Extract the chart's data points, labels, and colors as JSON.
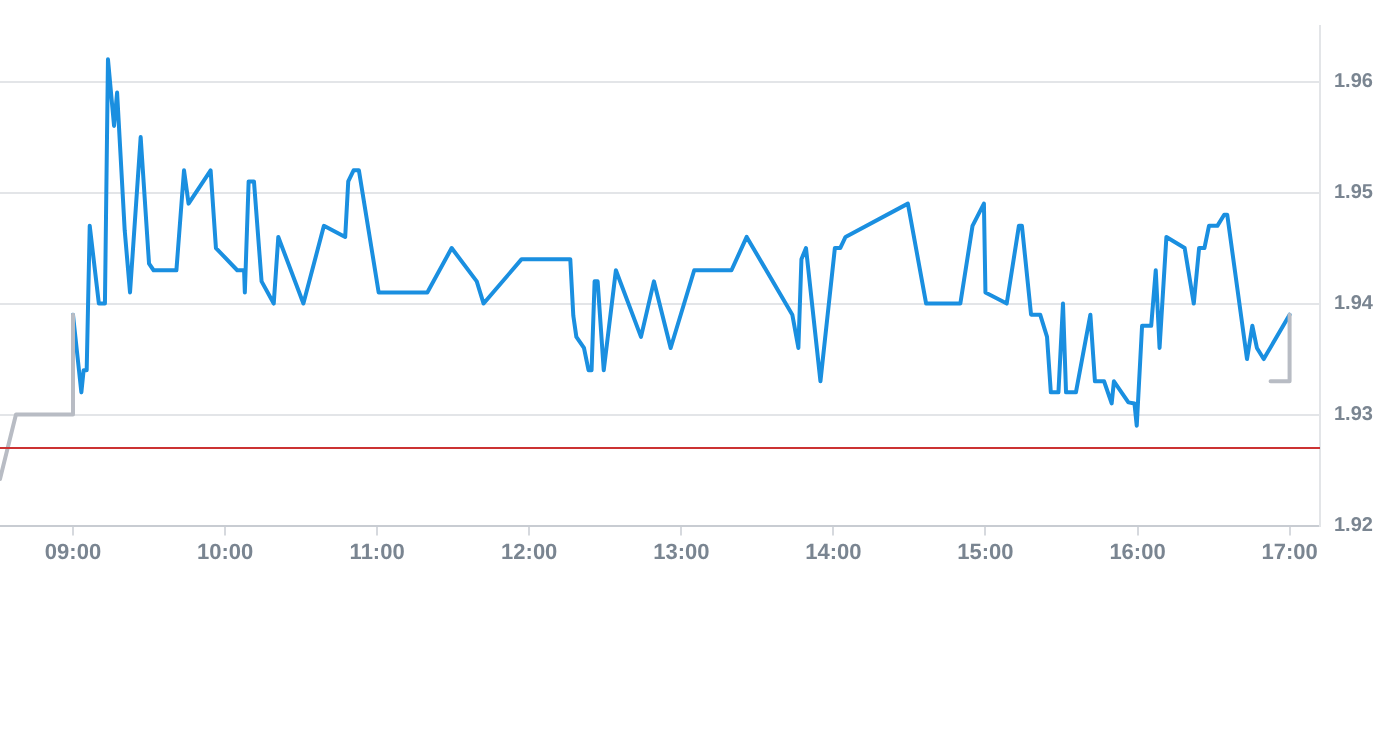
{
  "chart_data": {
    "type": "line",
    "legend": false,
    "grid": "y",
    "marker": "none",
    "line_style": "solid",
    "xlim": [
      8.52,
      17.2
    ],
    "ylim": [
      1.92,
      1.965
    ],
    "xticks": [
      {
        "value": 9,
        "label": "09:00"
      },
      {
        "value": 10,
        "label": "10:00"
      },
      {
        "value": 11,
        "label": "11:00"
      },
      {
        "value": 12,
        "label": "12:00"
      },
      {
        "value": 13,
        "label": "13:00"
      },
      {
        "value": 14,
        "label": "14:00"
      },
      {
        "value": 15,
        "label": "15:00"
      },
      {
        "value": 16,
        "label": "16:00"
      },
      {
        "value": 17,
        "label": "17:00"
      }
    ],
    "yticks": [
      1.92,
      1.93,
      1.94,
      1.95,
      1.96
    ],
    "ref_lines": [
      {
        "axis": "y",
        "value": 1.927,
        "color": "#cc3333"
      }
    ],
    "series": [
      {
        "color": "#b8bcc4",
        "x": [
          8.52,
          8.625,
          9.0,
          9.0,
          null,
          16.875,
          17.0,
          17.0
        ],
        "values": [
          1.9242,
          1.93,
          1.93,
          1.939,
          null,
          1.933,
          1.933,
          1.939
        ]
      },
      {
        "color": "#1a8fe0",
        "x": [
          9.0,
          9.055,
          9.07,
          9.09,
          9.11,
          9.17,
          9.21,
          9.23,
          9.27,
          9.29,
          9.34,
          9.375,
          9.445,
          9.5,
          9.53,
          9.68,
          9.73,
          9.76,
          9.905,
          9.94,
          10.08,
          10.125,
          10.13,
          10.155,
          10.19,
          10.24,
          10.32,
          10.35,
          10.515,
          10.65,
          10.79,
          10.81,
          10.845,
          10.88,
          11.01,
          11.33,
          11.49,
          11.655,
          11.7,
          11.95,
          12.27,
          12.29,
          12.31,
          12.36,
          12.39,
          12.41,
          12.43,
          12.45,
          12.49,
          12.57,
          12.735,
          12.82,
          12.93,
          13.085,
          13.33,
          13.43,
          13.73,
          13.77,
          13.79,
          13.82,
          13.915,
          14.01,
          14.045,
          14.08,
          14.49,
          14.61,
          14.835,
          14.915,
          14.99,
          15.0,
          15.14,
          15.22,
          15.24,
          15.3,
          15.36,
          15.405,
          15.43,
          15.48,
          15.51,
          15.53,
          15.595,
          15.69,
          15.72,
          15.78,
          15.83,
          15.845,
          15.94,
          15.98,
          15.995,
          16.03,
          16.09,
          16.12,
          16.145,
          16.19,
          16.31,
          16.37,
          16.405,
          16.44,
          16.47,
          16.525,
          16.57,
          16.59,
          16.72,
          16.755,
          16.785,
          16.83,
          17.0
        ],
        "values": [
          1.939,
          1.932,
          1.934,
          1.934,
          1.947,
          1.94,
          1.94,
          1.962,
          1.956,
          1.959,
          1.9466,
          1.941,
          1.955,
          1.9436,
          1.943,
          1.943,
          1.952,
          1.949,
          1.952,
          1.945,
          1.943,
          1.943,
          1.941,
          1.951,
          1.951,
          1.942,
          1.94,
          1.946,
          1.94,
          1.947,
          1.946,
          1.951,
          1.952,
          1.952,
          1.941,
          1.941,
          1.945,
          1.942,
          1.94,
          1.944,
          1.944,
          1.9389,
          1.937,
          1.936,
          1.934,
          1.934,
          1.942,
          1.942,
          1.934,
          1.943,
          1.937,
          1.942,
          1.936,
          1.943,
          1.943,
          1.946,
          1.939,
          1.936,
          1.944,
          1.945,
          1.933,
          1.945,
          1.945,
          1.946,
          1.949,
          1.94,
          1.94,
          1.947,
          1.949,
          1.941,
          1.94,
          1.947,
          1.947,
          1.939,
          1.939,
          1.937,
          1.932,
          1.932,
          1.94,
          1.932,
          1.932,
          1.939,
          1.933,
          1.933,
          1.931,
          1.933,
          1.9311,
          1.931,
          1.929,
          1.938,
          1.938,
          1.943,
          1.936,
          1.946,
          1.945,
          1.94,
          1.945,
          1.945,
          1.947,
          1.947,
          1.948,
          1.948,
          1.935,
          1.938,
          1.936,
          1.935,
          1.939
        ]
      }
    ]
  }
}
